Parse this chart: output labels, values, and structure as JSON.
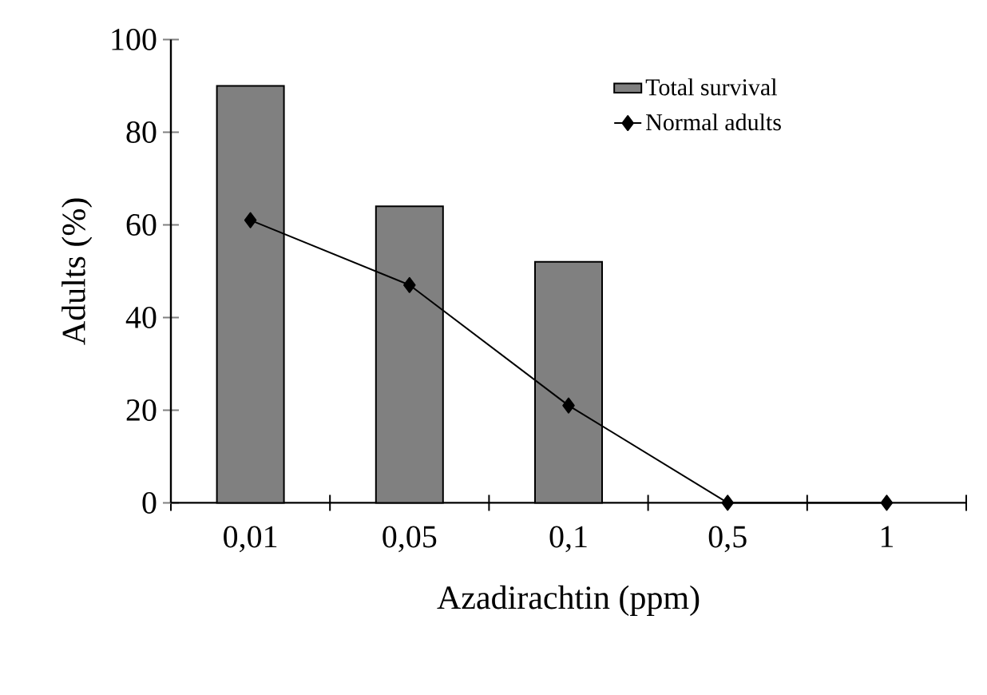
{
  "chart_data": {
    "type": "bar",
    "xlabel": "Azadirachtin (ppm)",
    "ylabel": "Adults (%)",
    "categories": [
      "0,01",
      "0,05",
      "0,1",
      "0,5",
      "1"
    ],
    "series": [
      {
        "name": "Total survival",
        "color": "#808080",
        "values": [
          90,
          64,
          52,
          null,
          null
        ]
      },
      {
        "name": "Normal adults",
        "type": "line",
        "color": "#000000",
        "marker": "diamond",
        "values": [
          61,
          47,
          21,
          0,
          0
        ]
      }
    ],
    "ylim": [
      0,
      100
    ],
    "yticks": [
      0,
      20,
      40,
      60,
      80,
      100
    ],
    "legend": "top right",
    "grid": false
  }
}
